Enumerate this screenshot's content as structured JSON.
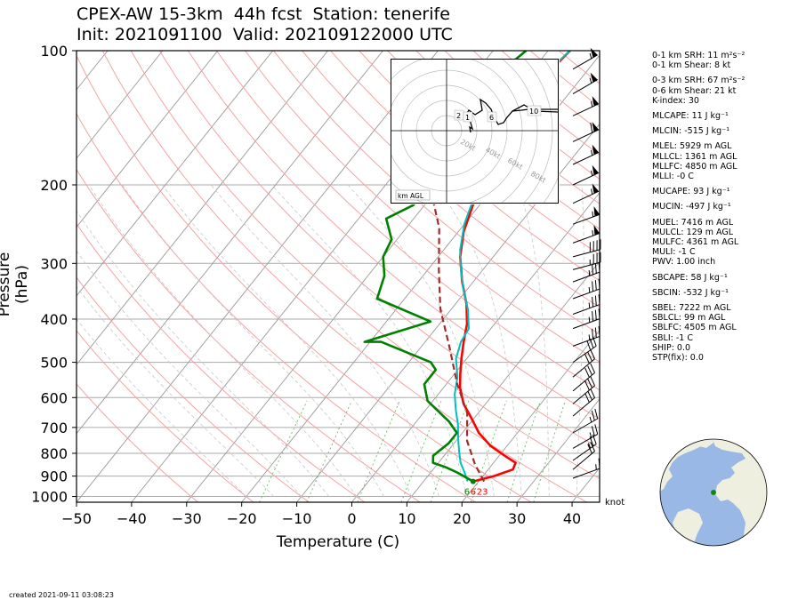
{
  "header": {
    "title_line1": "CPEX-AW 15-3km  44h fcst  Station: tenerife",
    "title_line2": "Init: 2021091100  Valid: 202109122000 UTC"
  },
  "footer": {
    "created": "created 2021-09-11 03:08:23"
  },
  "barb_units": "knot",
  "hodograph": {
    "ring_labels": [
      "20kt",
      "40kt",
      "60kt",
      "80kt"
    ],
    "height_labels": [
      "2",
      "1",
      "6",
      "10"
    ],
    "legend": "km AGL"
  },
  "indices": [
    {
      "text": "0-1 km SRH: 11 m²s⁻²",
      "gap": false
    },
    {
      "text": "0-1 km Shear: 8 kt",
      "gap": false
    },
    {
      "text": "0-3 km SRH: 67 m²s⁻²",
      "gap": true
    },
    {
      "text": "0-6 km Shear: 21 kt",
      "gap": false
    },
    {
      "text": "K-index: 30",
      "gap": false
    },
    {
      "text": "MLCAPE: 11 J kg⁻¹",
      "gap": true
    },
    {
      "text": "MLCIN: -515 J kg⁻¹",
      "gap": true
    },
    {
      "text": "MLEL: 5929 m AGL",
      "gap": true
    },
    {
      "text": "MLLCL: 1361 m AGL",
      "gap": false
    },
    {
      "text": "MLLFC: 4850 m AGL",
      "gap": false
    },
    {
      "text": "MLLI: -0 C",
      "gap": false
    },
    {
      "text": "MUCAPE: 93 J kg⁻¹",
      "gap": true
    },
    {
      "text": "MUCIN: -497 J kg⁻¹",
      "gap": true
    },
    {
      "text": "MUEL: 7416 m AGL",
      "gap": true
    },
    {
      "text": "MULCL: 129 m AGL",
      "gap": false
    },
    {
      "text": "MULFC: 4361 m AGL",
      "gap": false
    },
    {
      "text": "MULI: -1 C",
      "gap": false
    },
    {
      "text": "PWV: 1.00 inch",
      "gap": false
    },
    {
      "text": "SBCAPE: 58 J kg⁻¹",
      "gap": true
    },
    {
      "text": "SBCIN: -532 J kg⁻¹",
      "gap": true
    },
    {
      "text": "SBEL: 7222 m AGL",
      "gap": true
    },
    {
      "text": "SBLCL: 99 m AGL",
      "gap": false
    },
    {
      "text": "SBLFC: 4505 m AGL",
      "gap": false
    },
    {
      "text": "SBLI: -1 C",
      "gap": false
    },
    {
      "text": "SHIP: 0.0",
      "gap": false
    },
    {
      "text": "STP(fix): 0.0",
      "gap": false
    }
  ],
  "chart_data": {
    "type": "line",
    "xlabel": "Temperature (C)",
    "ylabel": "Pressure (hPa)",
    "xlim": [
      -50,
      45
    ],
    "ylim": [
      1030,
      100
    ],
    "y_scale": "log",
    "x_ticks": [
      -50,
      -40,
      -30,
      -20,
      -10,
      0,
      10,
      20,
      30,
      40
    ],
    "y_ticks": [
      100,
      200,
      300,
      400,
      500,
      600,
      700,
      800,
      900,
      1000
    ],
    "surface_labels": [
      "6",
      "6",
      "23"
    ],
    "colors": {
      "temperature": "#ff0000",
      "dewpoint": "#008000",
      "virtual_temperature": "#00bfbf",
      "parcel": "#a52a2a",
      "dry_adiabats": "#f4a3a3",
      "moist_adiabats": "#c8c8c8",
      "mixing_ratio": "#66bb66",
      "isotherms": "#999999"
    },
    "series": [
      {
        "key": "temperature",
        "values": [
          [
            19,
            925
          ],
          [
            22,
            900
          ],
          [
            24.5,
            870
          ],
          [
            24,
            840
          ],
          [
            21,
            810
          ],
          [
            17,
            770
          ],
          [
            13,
            720
          ],
          [
            9,
            660
          ],
          [
            6,
            620
          ],
          [
            3,
            570
          ],
          [
            1,
            530
          ],
          [
            -1,
            490
          ],
          [
            -3,
            450
          ],
          [
            -5,
            410
          ],
          [
            -8,
            370
          ],
          [
            -12,
            330
          ],
          [
            -16,
            290
          ],
          [
            -19,
            255
          ],
          [
            -21,
            225
          ],
          [
            -23,
            200
          ],
          [
            -26,
            175
          ],
          [
            -29,
            155
          ],
          [
            -29,
            140
          ],
          [
            -28,
            125
          ],
          [
            -27,
            115
          ],
          [
            -26,
            100
          ]
        ]
      },
      {
        "key": "virtual_temperature",
        "values": [
          [
            18,
            925
          ],
          [
            16,
            880
          ],
          [
            14,
            840
          ],
          [
            12,
            790
          ],
          [
            10,
            740
          ],
          [
            8,
            690
          ],
          [
            5.5,
            640
          ],
          [
            3,
            590
          ],
          [
            1,
            540
          ],
          [
            -2,
            490
          ],
          [
            -3.5,
            450
          ],
          [
            -4,
            420
          ],
          [
            -7,
            380
          ],
          [
            -11,
            340
          ],
          [
            -14,
            310
          ],
          [
            -17,
            280
          ],
          [
            -20,
            245
          ],
          [
            -22,
            215
          ],
          [
            -24,
            190
          ],
          [
            -27,
            170
          ],
          [
            -29,
            155
          ],
          [
            -30,
            145
          ],
          [
            -29,
            135
          ],
          [
            -28,
            120
          ],
          [
            -27,
            110
          ],
          [
            -26,
            100
          ]
        ]
      },
      {
        "key": "dewpoint",
        "values": [
          [
            19,
            925
          ],
          [
            15,
            885
          ],
          [
            12,
            860
          ],
          [
            9,
            840
          ],
          [
            8,
            810
          ],
          [
            9,
            760
          ],
          [
            9,
            720
          ],
          [
            6,
            680
          ],
          [
            -1,
            610
          ],
          [
            -4,
            560
          ],
          [
            -4,
            520
          ],
          [
            -6,
            500
          ],
          [
            -18,
            450
          ],
          [
            -21,
            450
          ],
          [
            -12,
            405
          ],
          [
            -25,
            360
          ],
          [
            -27,
            320
          ],
          [
            -30,
            290
          ],
          [
            -31,
            265
          ],
          [
            -35,
            238
          ],
          [
            -32,
            222
          ],
          [
            -33,
            198
          ],
          [
            -37,
            180
          ],
          [
            -37,
            165
          ],
          [
            -38,
            148
          ],
          [
            -37,
            130
          ],
          [
            -36,
            115
          ],
          [
            -34,
            100
          ]
        ]
      },
      {
        "key": "parcel",
        "values": [
          [
            21,
            925
          ],
          [
            17,
            850
          ],
          [
            12,
            750
          ],
          [
            8,
            650
          ],
          [
            2,
            560
          ],
          [
            -5,
            460
          ],
          [
            -12,
            380
          ],
          [
            -18,
            310
          ],
          [
            -24,
            250
          ],
          [
            -32,
            200
          ],
          [
            -40,
            160
          ],
          [
            -50,
            120
          ]
        ]
      }
    ],
    "wind_barbs_kt": [
      {
        "p": 110,
        "spd": 55,
        "dir": 240
      },
      {
        "p": 125,
        "spd": 55,
        "dir": 240
      },
      {
        "p": 140,
        "spd": 55,
        "dir": 245
      },
      {
        "p": 160,
        "spd": 60,
        "dir": 245
      },
      {
        "p": 180,
        "spd": 55,
        "dir": 245
      },
      {
        "p": 200,
        "spd": 55,
        "dir": 245
      },
      {
        "p": 220,
        "spd": 55,
        "dir": 245
      },
      {
        "p": 245,
        "spd": 55,
        "dir": 250
      },
      {
        "p": 270,
        "spd": 55,
        "dir": 250
      },
      {
        "p": 290,
        "spd": 40,
        "dir": 255
      },
      {
        "p": 310,
        "spd": 35,
        "dir": 255
      },
      {
        "p": 330,
        "spd": 35,
        "dir": 250
      },
      {
        "p": 360,
        "spd": 35,
        "dir": 250
      },
      {
        "p": 390,
        "spd": 35,
        "dir": 250
      },
      {
        "p": 420,
        "spd": 35,
        "dir": 250
      },
      {
        "p": 460,
        "spd": 35,
        "dir": 250
      },
      {
        "p": 500,
        "spd": 30,
        "dir": 235
      },
      {
        "p": 540,
        "spd": 30,
        "dir": 230
      },
      {
        "p": 580,
        "spd": 30,
        "dir": 230
      },
      {
        "p": 620,
        "spd": 30,
        "dir": 230
      },
      {
        "p": 660,
        "spd": 30,
        "dir": 230
      },
      {
        "p": 720,
        "spd": 25,
        "dir": 240
      },
      {
        "p": 780,
        "spd": 25,
        "dir": 240
      },
      {
        "p": 830,
        "spd": 25,
        "dir": 235
      },
      {
        "p": 870,
        "spd": 20,
        "dir": 230
      },
      {
        "p": 910,
        "spd": 15,
        "dir": 250
      }
    ]
  }
}
